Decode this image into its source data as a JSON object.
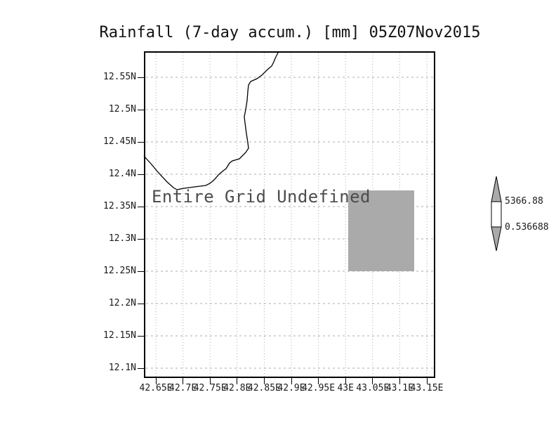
{
  "title": "Rainfall (7-day accum.) [mm] 05Z07Nov2015",
  "annotation": "Entire Grid Undefined",
  "axes": {
    "x_tick_labels": [
      "42.65E",
      "42.7E",
      "42.75E",
      "42.8E",
      "42.85E",
      "42.9E",
      "42.95E",
      "43E",
      "43.05E",
      "43.1E",
      "43.15E"
    ],
    "y_tick_labels": [
      "12.55N",
      "12.5N",
      "12.45N",
      "12.4N",
      "12.35N",
      "12.3N",
      "12.25N",
      "12.2N",
      "12.15N",
      "12.1N"
    ]
  },
  "colorbar": {
    "top_label": "5366.88",
    "bottom_label": "0.536688"
  },
  "colors": {
    "grid_line": "#adadad",
    "undefined_box": "#aaaaaa",
    "colorbar_arrow": "#aaaaaa",
    "frame": "#000000"
  },
  "chart_data": {
    "type": "heatmap",
    "title": "Rainfall (7-day accum.) [mm] 05Z07Nov2015",
    "xlabel": "",
    "ylabel": "",
    "x_ticks": [
      "42.65E",
      "42.7E",
      "42.75E",
      "42.8E",
      "42.85E",
      "42.9E",
      "42.95E",
      "43E",
      "43.05E",
      "43.1E",
      "43.15E"
    ],
    "y_ticks": [
      "12.55N",
      "12.5N",
      "12.45N",
      "12.4N",
      "12.35N",
      "12.3N",
      "12.25N",
      "12.2N",
      "12.15N",
      "12.1N"
    ],
    "xlim": [
      "42.63E",
      "43.16E"
    ],
    "ylim": [
      "12.09N",
      "12.59N"
    ],
    "grid": true,
    "values": "undefined",
    "status_annotation": "Entire Grid Undefined",
    "colorbar": {
      "min": 0.536688,
      "max": 5366.88,
      "position": "right"
    },
    "shaded_undefined_region": {
      "lon_range": [
        "43E",
        "43.125E"
      ],
      "lat_range": [
        "12.25N",
        "12.375N"
      ],
      "color": "#aaaaaa"
    },
    "coastline_present": true
  }
}
